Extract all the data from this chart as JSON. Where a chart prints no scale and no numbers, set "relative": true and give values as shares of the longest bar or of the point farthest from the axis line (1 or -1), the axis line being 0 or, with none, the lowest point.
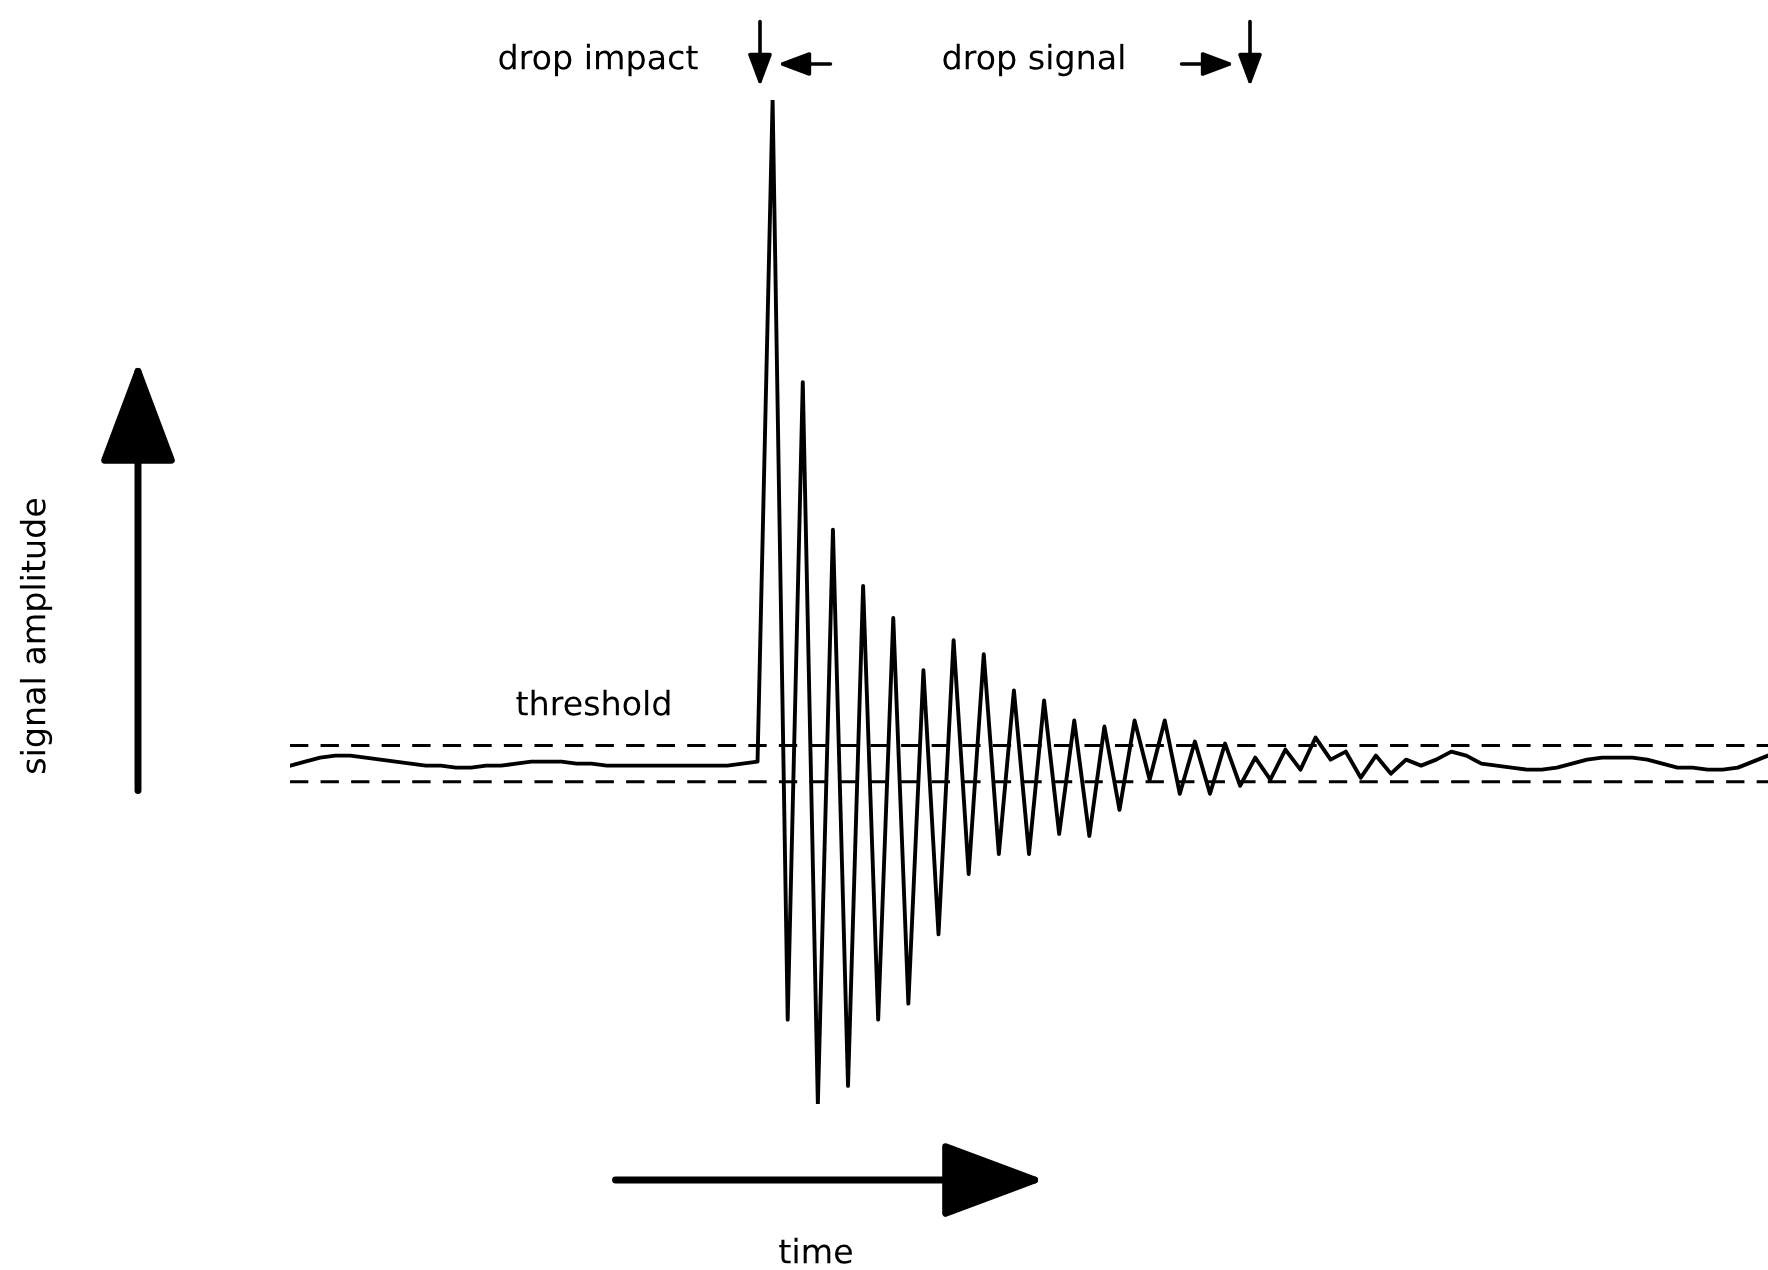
{
  "chart_data": {
    "type": "line",
    "relative": true,
    "xlabel": "time",
    "categories": [
      null,
      null,
      null,
      null,
      null,
      null,
      null,
      null,
      null,
      null,
      null,
      null,
      null,
      null,
      null,
      null,
      null,
      null,
      null,
      null,
      null,
      null,
      null,
      null,
      null,
      null,
      null,
      null,
      null,
      null,
      null,
      null,
      null,
      null,
      null,
      null,
      null,
      null,
      null,
      null,
      null,
      null,
      null,
      null,
      null,
      null,
      null,
      null,
      null,
      null,
      null,
      null,
      null,
      null,
      null,
      null,
      null,
      null,
      null,
      null,
      null,
      null,
      null,
      null,
      null,
      null,
      null,
      null,
      null,
      null,
      null,
      null,
      null,
      null,
      null,
      null,
      null,
      null,
      null,
      null,
      null,
      null,
      null,
      null,
      null,
      null,
      null,
      null,
      null,
      null,
      null,
      null,
      null,
      null,
      null,
      null,
      null,
      null,
      null
    ],
    "series": [
      {
        "color": "#000000",
        "values": [
          0.337,
          0.341,
          0.345,
          0.347,
          0.347,
          0.345,
          0.343,
          0.341,
          0.339,
          0.337,
          0.337,
          0.335,
          0.335,
          0.337,
          0.337,
          0.339,
          0.341,
          0.341,
          0.341,
          0.339,
          0.339,
          0.337,
          0.337,
          0.337,
          0.337,
          0.337,
          0.337,
          0.337,
          0.337,
          0.337,
          0.339,
          0.341,
          1,
          0.084,
          0.719,
          0,
          0.572,
          0.018,
          0.516,
          0.084,
          0.484,
          0.1,
          0.432,
          0.169,
          0.462,
          0.229,
          0.448,
          0.249,
          0.412,
          0.249,
          0.402,
          0.269,
          0.382,
          0.267,
          0.376,
          0.293,
          0.382,
          0.323,
          0.382,
          0.309,
          0.361,
          0.309,
          0.359,
          0.317,
          0.345,
          0.323,
          0.353,
          0.333,
          0.365,
          0.343,
          0.351,
          0.325,
          0.347,
          0.329,
          0.343,
          0.337,
          0.343,
          0.351,
          0.347,
          0.339,
          0.337,
          0.335,
          0.333,
          0.333,
          0.335,
          0.339,
          0.343,
          0.345,
          0.345,
          0.345,
          0.343,
          0.339,
          0.335,
          0.335,
          0.333,
          0.333,
          0.335,
          0.341,
          0.347
        ]
      }
    ],
    "ref_lines": [
      {
        "axis": "y",
        "value": 0.357,
        "color": "#000000",
        "line_style": "dashed"
      },
      {
        "axis": "y",
        "value": 0.321,
        "color": "#000000",
        "line_style": "dashed"
      }
    ],
    "annotations": [
      "drop impact",
      "drop signal",
      "threshold",
      "signal amplitude"
    ]
  }
}
